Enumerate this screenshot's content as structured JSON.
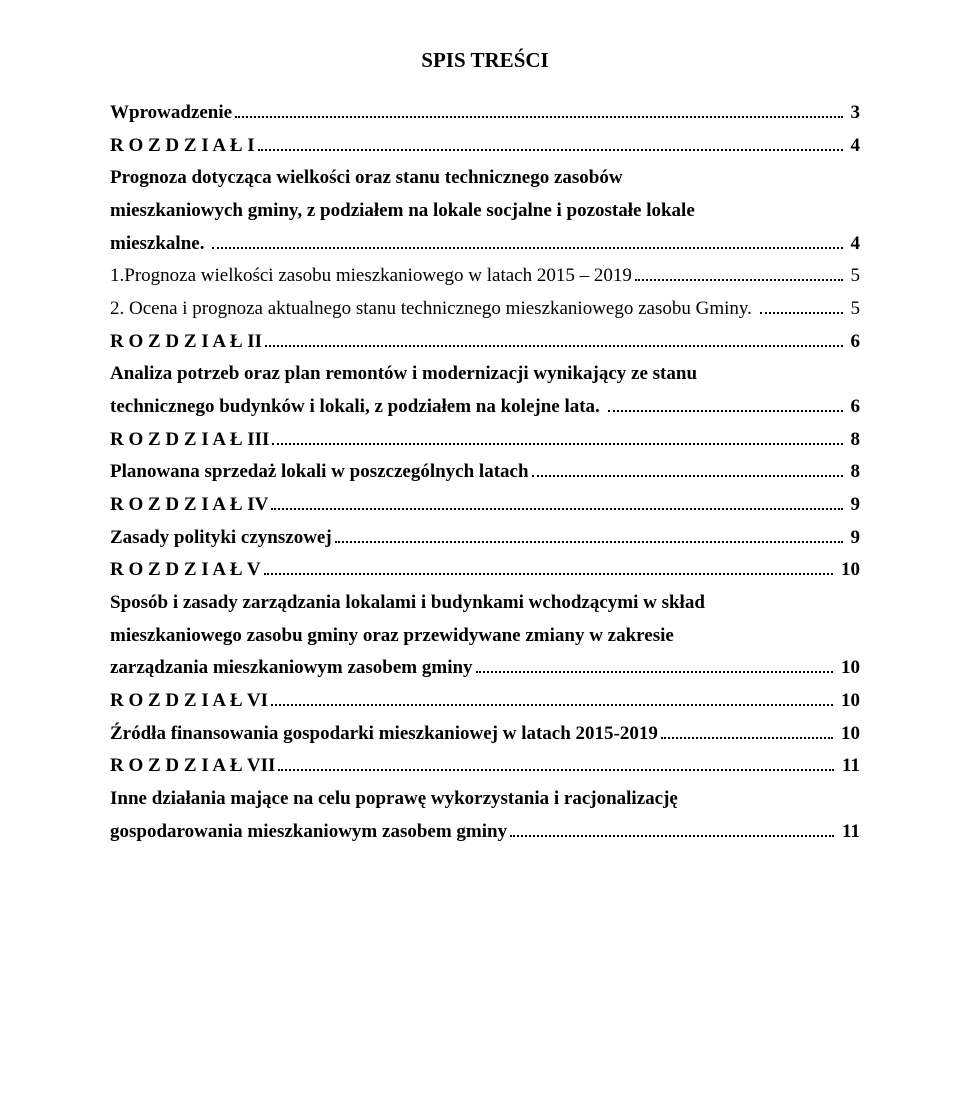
{
  "title": "SPIS TREŚCI",
  "entries": [
    {
      "type": "single",
      "bold": true,
      "text": "Wprowadzenie",
      "page": "3"
    },
    {
      "type": "single",
      "bold": true,
      "text": "R O Z D Z I A Ł I",
      "page": "4"
    },
    {
      "type": "multi",
      "bold": true,
      "lines": [
        "Prognoza dotycząca wielkości oraz stanu technicznego zasobów",
        "mieszkaniowych gminy, z podziałem na lokale socjalne i pozostałe lokale"
      ],
      "lastText": "mieszkalne. ",
      "page": "4"
    },
    {
      "type": "single",
      "bold": false,
      "text": "1.Prognoza wielkości zasobu mieszkaniowego w latach 2015 – 2019",
      "page": "5"
    },
    {
      "type": "single",
      "bold": false,
      "text": "2. Ocena i prognoza aktualnego stanu technicznego mieszkaniowego zasobu Gminy. ",
      "page": "5"
    },
    {
      "type": "single",
      "bold": true,
      "text": "R O Z D Z I A Ł II",
      "page": "6"
    },
    {
      "type": "multi",
      "bold": true,
      "lines": [
        "Analiza potrzeb oraz plan remontów i modernizacji wynikający ze stanu"
      ],
      "lastText": "technicznego budynków i lokali, z podziałem na kolejne lata. ",
      "page": "6"
    },
    {
      "type": "single",
      "bold": true,
      "text": "R O Z D Z I A Ł III",
      "page": "8"
    },
    {
      "type": "single",
      "bold": true,
      "text": "Planowana sprzedaż lokali w poszczególnych latach",
      "page": "8"
    },
    {
      "type": "single",
      "bold": true,
      "text": "R O Z D Z I A Ł IV",
      "page": "9"
    },
    {
      "type": "single",
      "bold": true,
      "text": "Zasady polityki czynszowej",
      "page": "9"
    },
    {
      "type": "single",
      "bold": true,
      "text": "R O Z D Z I A Ł V",
      "page": "10"
    },
    {
      "type": "multi",
      "bold": true,
      "lines": [
        "Sposób i zasady zarządzania lokalami i budynkami wchodzącymi w skład",
        "mieszkaniowego zasobu gminy oraz przewidywane zmiany w zakresie"
      ],
      "lastText": "zarządzania mieszkaniowym zasobem gminy",
      "page": "10"
    },
    {
      "type": "single",
      "bold": true,
      "text": "R O Z D Z I A Ł VI",
      "page": "10"
    },
    {
      "type": "single",
      "bold": true,
      "text": "Źródła finansowania gospodarki mieszkaniowej w latach 2015-2019",
      "page": "10"
    },
    {
      "type": "single",
      "bold": true,
      "text": "R O Z D Z I A Ł VII",
      "page": "11"
    },
    {
      "type": "multi",
      "bold": true,
      "lines": [
        "Inne działania mające na celu poprawę wykorzystania i racjonalizację"
      ],
      "lastText": "gospodarowania mieszkaniowym zasobem gminy",
      "page": "11"
    }
  ]
}
